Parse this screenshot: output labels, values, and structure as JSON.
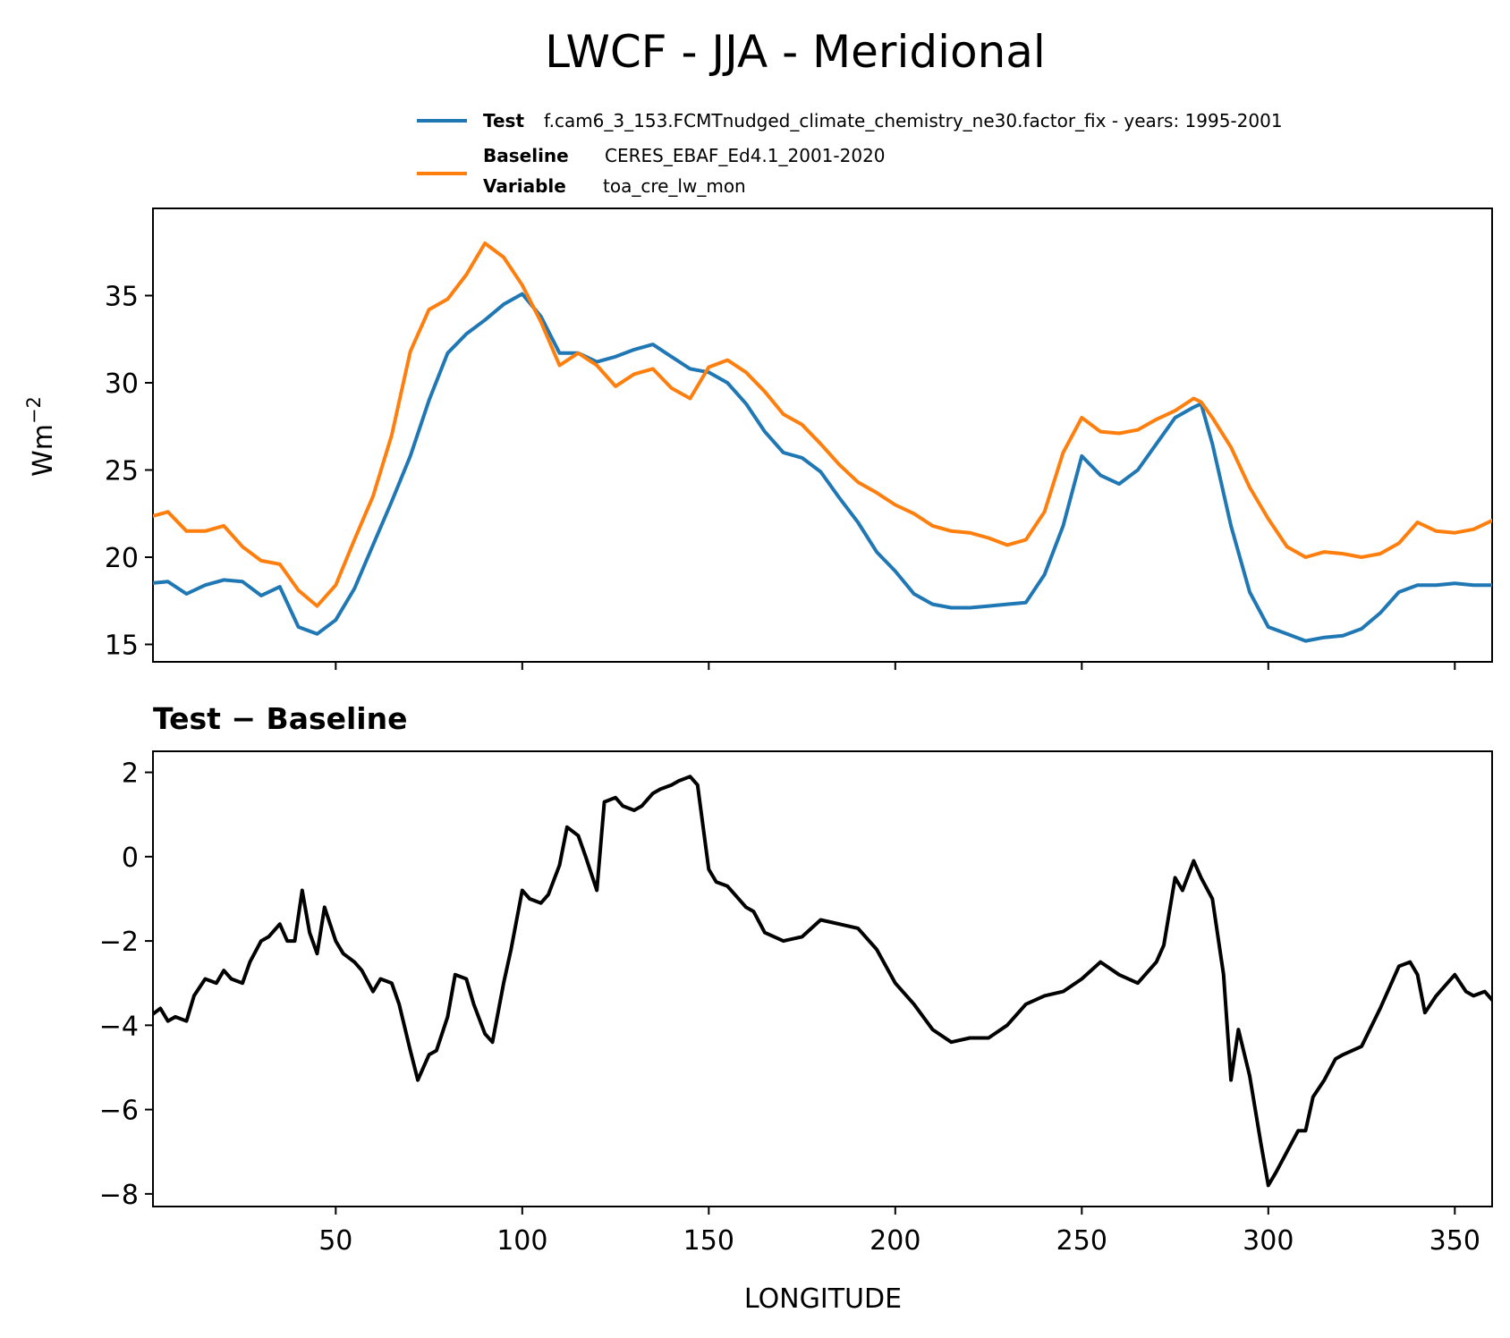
{
  "title": "LWCF - JJA - Meridional",
  "legend": {
    "test": {
      "key": "Test",
      "value": "f.cam6_3_153.FCMTnudged_climate_chemistry_ne30.factor_fix - years: 1995-2001",
      "color": "#1f77b4"
    },
    "baseline": {
      "key": "Baseline",
      "value": "CERES_EBAF_Ed4.1_2001-2020",
      "color": "#ff7f0e"
    },
    "variable": {
      "key": "Variable",
      "value": "toa_cre_lw_mon"
    }
  },
  "chart_data": [
    {
      "type": "line",
      "ylabel_base": "Wm",
      "ylabel_sup": "−2",
      "xlim": [
        1,
        360
      ],
      "ylim": [
        14,
        40
      ],
      "yticks": [
        15,
        20,
        25,
        30,
        35
      ],
      "ytick_labels": [
        "15",
        "20",
        "25",
        "30",
        "35"
      ],
      "xticks": [
        50,
        100,
        150,
        200,
        250,
        300,
        350
      ],
      "x": [
        0,
        5,
        10,
        15,
        20,
        25,
        30,
        35,
        40,
        45,
        50,
        55,
        60,
        65,
        70,
        75,
        80,
        85,
        90,
        95,
        100,
        105,
        110,
        115,
        120,
        125,
        130,
        135,
        140,
        145,
        150,
        155,
        160,
        165,
        170,
        175,
        180,
        185,
        190,
        195,
        200,
        205,
        210,
        215,
        220,
        225,
        230,
        235,
        240,
        245,
        250,
        255,
        260,
        265,
        270,
        275,
        280,
        282,
        285,
        290,
        295,
        300,
        305,
        310,
        315,
        320,
        325,
        330,
        335,
        340,
        345,
        350,
        355,
        360
      ],
      "series": [
        {
          "name": "Test",
          "color": "#1f77b4",
          "values": [
            18.5,
            18.6,
            17.9,
            18.4,
            18.7,
            18.6,
            17.8,
            18.3,
            16.0,
            15.6,
            16.4,
            18.2,
            20.7,
            23.2,
            25.8,
            29.0,
            31.7,
            32.8,
            33.6,
            34.5,
            35.1,
            33.8,
            31.7,
            31.7,
            31.2,
            31.5,
            31.9,
            32.2,
            31.5,
            30.8,
            30.6,
            30.0,
            28.8,
            27.2,
            26.0,
            25.7,
            24.9,
            23.4,
            22.0,
            20.3,
            19.2,
            17.9,
            17.3,
            17.1,
            17.1,
            17.2,
            17.3,
            17.4,
            19.0,
            21.8,
            25.8,
            24.7,
            24.2,
            25.0,
            26.5,
            28.0,
            28.6,
            28.8,
            26.5,
            21.8,
            18.0,
            16.0,
            15.6,
            15.2,
            15.4,
            15.5,
            15.9,
            16.8,
            18.0,
            18.4,
            18.4,
            18.5,
            18.4,
            18.4
          ]
        },
        {
          "name": "Baseline",
          "color": "#ff7f0e",
          "values": [
            22.3,
            22.6,
            21.5,
            21.5,
            21.8,
            20.6,
            19.8,
            19.6,
            18.1,
            17.2,
            18.4,
            21.0,
            23.5,
            27.0,
            31.8,
            34.2,
            34.8,
            36.2,
            38.0,
            37.2,
            35.6,
            33.5,
            31.0,
            31.7,
            31.0,
            29.8,
            30.5,
            30.8,
            29.7,
            29.1,
            30.9,
            31.3,
            30.6,
            29.5,
            28.2,
            27.6,
            26.5,
            25.3,
            24.3,
            23.7,
            23.0,
            22.5,
            21.8,
            21.5,
            21.4,
            21.1,
            20.7,
            21.0,
            22.6,
            26.0,
            28.0,
            27.2,
            27.1,
            27.3,
            27.9,
            28.4,
            29.1,
            28.9,
            28.0,
            26.3,
            24.0,
            22.2,
            20.6,
            20.0,
            20.3,
            20.2,
            20.0,
            20.2,
            20.8,
            22.0,
            21.5,
            21.4,
            21.6,
            22.1
          ]
        }
      ]
    },
    {
      "type": "line",
      "title": "Test − Baseline",
      "xlabel": "LONGITUDE",
      "xlim": [
        1,
        360
      ],
      "ylim": [
        -8.3,
        2.5
      ],
      "yticks": [
        -8,
        -6,
        -4,
        -2,
        0,
        2
      ],
      "ytick_labels": [
        "−8",
        "−6",
        "−4",
        "−2",
        "0",
        "2"
      ],
      "xticks": [
        50,
        100,
        150,
        200,
        250,
        300,
        350
      ],
      "xtick_labels": [
        "50",
        "100",
        "150",
        "200",
        "250",
        "300",
        "350"
      ],
      "x": [
        0,
        3,
        5,
        7,
        10,
        12,
        15,
        18,
        20,
        22,
        25,
        27,
        30,
        32,
        35,
        37,
        39,
        41,
        43,
        45,
        47,
        50,
        52,
        55,
        57,
        60,
        62,
        65,
        67,
        70,
        72,
        75,
        77,
        80,
        82,
        85,
        87,
        90,
        92,
        95,
        97,
        100,
        102,
        105,
        107,
        110,
        112,
        115,
        117,
        120,
        122,
        125,
        127,
        130,
        132,
        135,
        137,
        140,
        142,
        145,
        147,
        150,
        152,
        155,
        157,
        160,
        162,
        165,
        170,
        175,
        180,
        185,
        190,
        195,
        200,
        205,
        210,
        215,
        220,
        225,
        230,
        235,
        240,
        245,
        250,
        255,
        260,
        265,
        270,
        272,
        275,
        277,
        280,
        282,
        285,
        288,
        290,
        292,
        295,
        298,
        300,
        302,
        305,
        308,
        310,
        312,
        315,
        318,
        320,
        325,
        330,
        335,
        338,
        340,
        342,
        345,
        348,
        350,
        353,
        355,
        358,
        360
      ],
      "series": [
        {
          "name": "Test − Baseline",
          "color": "#000000",
          "values": [
            -3.8,
            -3.6,
            -3.9,
            -3.8,
            -3.9,
            -3.3,
            -2.9,
            -3.0,
            -2.7,
            -2.9,
            -3.0,
            -2.5,
            -2.0,
            -1.9,
            -1.6,
            -2.0,
            -2.0,
            -0.8,
            -1.8,
            -2.3,
            -1.2,
            -2.0,
            -2.3,
            -2.5,
            -2.7,
            -3.2,
            -2.9,
            -3.0,
            -3.5,
            -4.6,
            -5.3,
            -4.7,
            -4.6,
            -3.8,
            -2.8,
            -2.9,
            -3.5,
            -4.2,
            -4.4,
            -3.0,
            -2.2,
            -0.8,
            -1.0,
            -1.1,
            -0.9,
            -0.2,
            0.7,
            0.5,
            0.0,
            -0.8,
            1.3,
            1.4,
            1.2,
            1.1,
            1.2,
            1.5,
            1.6,
            1.7,
            1.8,
            1.9,
            1.7,
            -0.3,
            -0.6,
            -0.7,
            -0.9,
            -1.2,
            -1.3,
            -1.8,
            -2.0,
            -1.9,
            -1.5,
            -1.6,
            -1.7,
            -2.2,
            -3.0,
            -3.5,
            -4.1,
            -4.4,
            -4.3,
            -4.3,
            -4.0,
            -3.5,
            -3.3,
            -3.2,
            -2.9,
            -2.5,
            -2.8,
            -3.0,
            -2.5,
            -2.1,
            -0.5,
            -0.8,
            -0.1,
            -0.5,
            -1.0,
            -2.8,
            -5.3,
            -4.1,
            -5.2,
            -6.8,
            -7.8,
            -7.5,
            -7.0,
            -6.5,
            -6.5,
            -5.7,
            -5.3,
            -4.8,
            -4.7,
            -4.5,
            -3.6,
            -2.6,
            -2.5,
            -2.8,
            -3.7,
            -3.3,
            -3.0,
            -2.8,
            -3.2,
            -3.3,
            -3.2,
            -3.4
          ]
        }
      ]
    }
  ]
}
